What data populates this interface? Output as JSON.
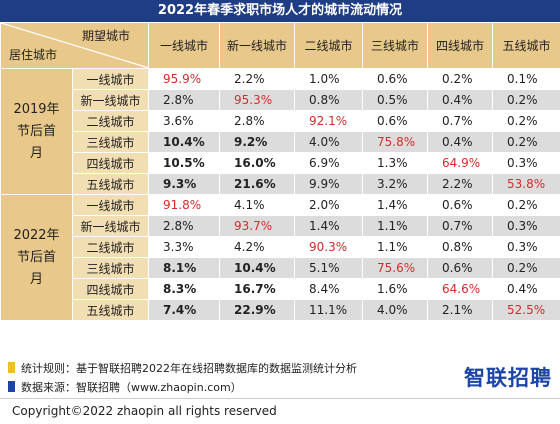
{
  "title": "2022年春季求职市场人才的城市流动情况",
  "header": {
    "expected_label": "期望城市",
    "residence_label": "居住城市",
    "columns": [
      "一线城市",
      "新一线城市",
      "二线城市",
      "三线城市",
      "四线城市",
      "五线城市"
    ]
  },
  "groups": [
    {
      "label": "2019年节后首月",
      "rows": [
        {
          "name": "一线城市",
          "values": [
            "95.9%",
            "2.2%",
            "1.0%",
            "0.6%",
            "0.2%",
            "0.1%"
          ],
          "highlight": 0,
          "bold": []
        },
        {
          "name": "新一线城市",
          "values": [
            "2.8%",
            "95.3%",
            "0.8%",
            "0.5%",
            "0.4%",
            "0.2%"
          ],
          "highlight": 1,
          "bold": []
        },
        {
          "name": "二线城市",
          "values": [
            "3.6%",
            "2.8%",
            "92.1%",
            "0.6%",
            "0.7%",
            "0.2%"
          ],
          "highlight": 2,
          "bold": []
        },
        {
          "name": "三线城市",
          "values": [
            "10.4%",
            "9.2%",
            "4.0%",
            "75.8%",
            "0.4%",
            "0.2%"
          ],
          "highlight": 3,
          "bold": [
            0,
            1
          ]
        },
        {
          "name": "四线城市",
          "values": [
            "10.5%",
            "16.0%",
            "6.9%",
            "1.3%",
            "64.9%",
            "0.3%"
          ],
          "highlight": 4,
          "bold": [
            0,
            1
          ]
        },
        {
          "name": "五线城市",
          "values": [
            "9.3%",
            "21.6%",
            "9.9%",
            "3.2%",
            "2.2%",
            "53.8%"
          ],
          "highlight": 5,
          "bold": [
            0,
            1
          ]
        }
      ]
    },
    {
      "label": "2022年节后首月",
      "rows": [
        {
          "name": "一线城市",
          "values": [
            "91.8%",
            "4.1%",
            "2.0%",
            "1.4%",
            "0.6%",
            "0.2%"
          ],
          "highlight": 0,
          "bold": []
        },
        {
          "name": "新一线城市",
          "values": [
            "2.8%",
            "93.7%",
            "1.4%",
            "1.1%",
            "0.7%",
            "0.3%"
          ],
          "highlight": 1,
          "bold": []
        },
        {
          "name": "二线城市",
          "values": [
            "3.3%",
            "4.2%",
            "90.3%",
            "1.1%",
            "0.8%",
            "0.3%"
          ],
          "highlight": 2,
          "bold": []
        },
        {
          "name": "三线城市",
          "values": [
            "8.1%",
            "10.4%",
            "5.1%",
            "75.6%",
            "0.6%",
            "0.2%"
          ],
          "highlight": 3,
          "bold": [
            0,
            1
          ]
        },
        {
          "name": "四线城市",
          "values": [
            "8.3%",
            "16.7%",
            "8.4%",
            "1.6%",
            "64.6%",
            "0.4%"
          ],
          "highlight": 4,
          "bold": [
            0,
            1
          ]
        },
        {
          "name": "五线城市",
          "values": [
            "7.4%",
            "22.9%",
            "11.1%",
            "4.0%",
            "2.1%",
            "52.5%"
          ],
          "highlight": 5,
          "bold": [
            0,
            1
          ]
        }
      ]
    }
  ],
  "notes": {
    "rule": "统计规则：基于智联招聘2022年在线招聘数据库的数据监测统计分析",
    "source": "数据来源：智联招聘（www.zhaopin.com）"
  },
  "logo": "智联招聘",
  "copyright": "Copyright©2022 zhaopin all rights reserved",
  "colors": {
    "title_bg": "#1f3d85",
    "header_bg": "#e9c98b",
    "row_label_bg": "#f2deb3",
    "highlight_text": "#d62b2b",
    "rule_marker": "#f0c020",
    "source_marker": "#1d45a8"
  }
}
